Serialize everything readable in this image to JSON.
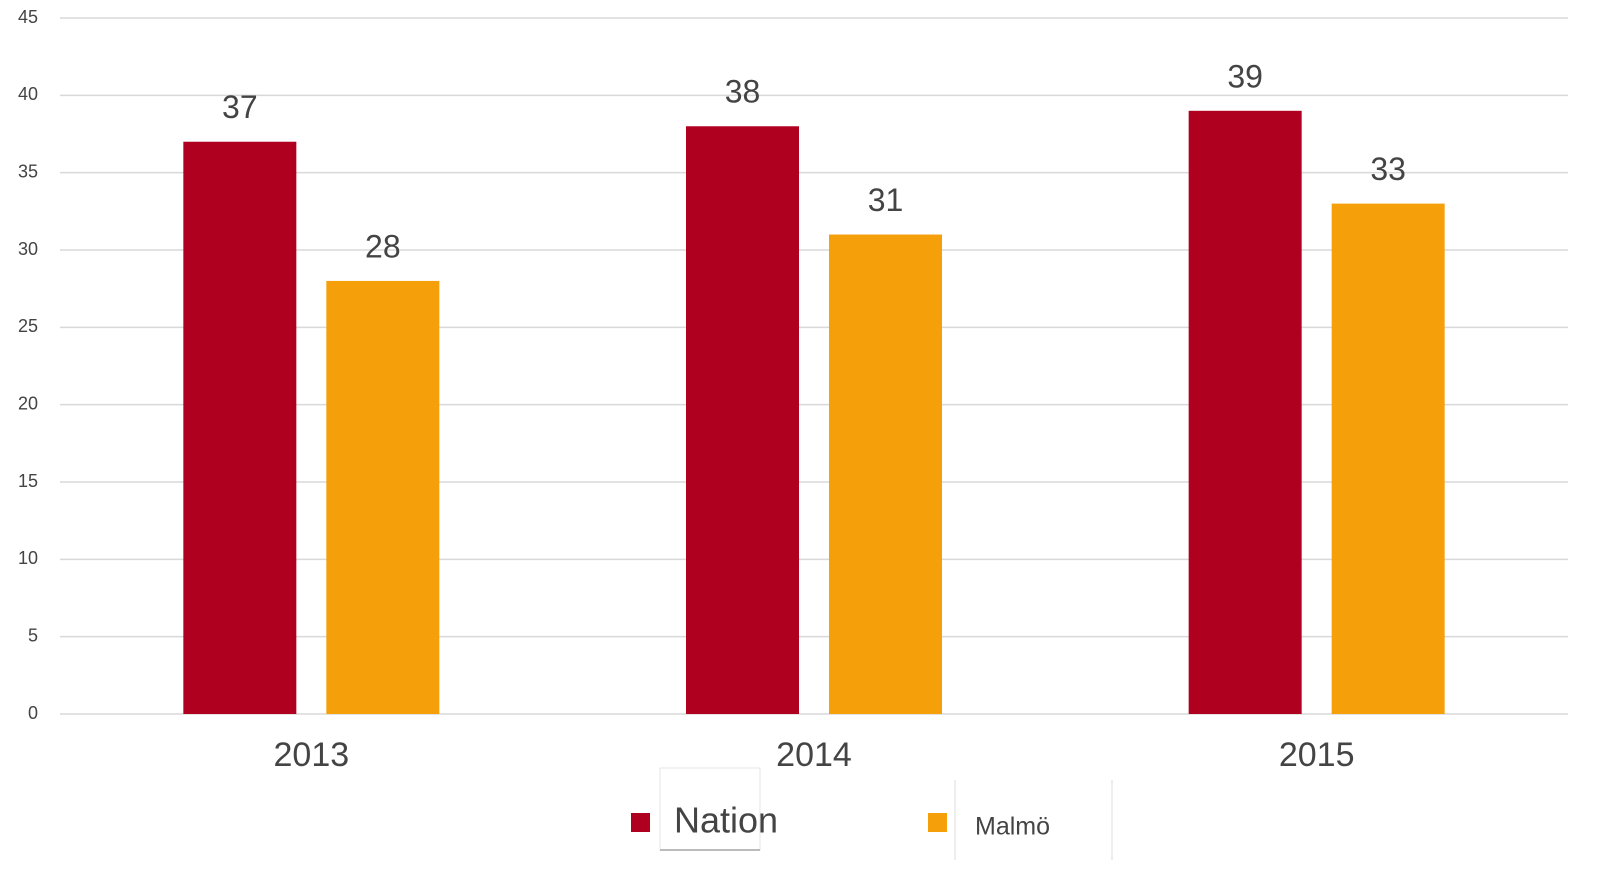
{
  "chart_data": {
    "type": "bar",
    "categories": [
      "2013",
      "2014",
      "2015"
    ],
    "series": [
      {
        "name": "Nation",
        "color": "#b00020",
        "values": [
          37,
          38,
          39
        ]
      },
      {
        "name": "Malmö",
        "color": "#f5a00a",
        "values": [
          28,
          31,
          33
        ]
      }
    ],
    "ylim": [
      0,
      45
    ],
    "yticks": [
      0,
      5,
      10,
      15,
      20,
      25,
      30,
      35,
      40,
      45
    ],
    "grid": true,
    "legend": "bottom"
  }
}
